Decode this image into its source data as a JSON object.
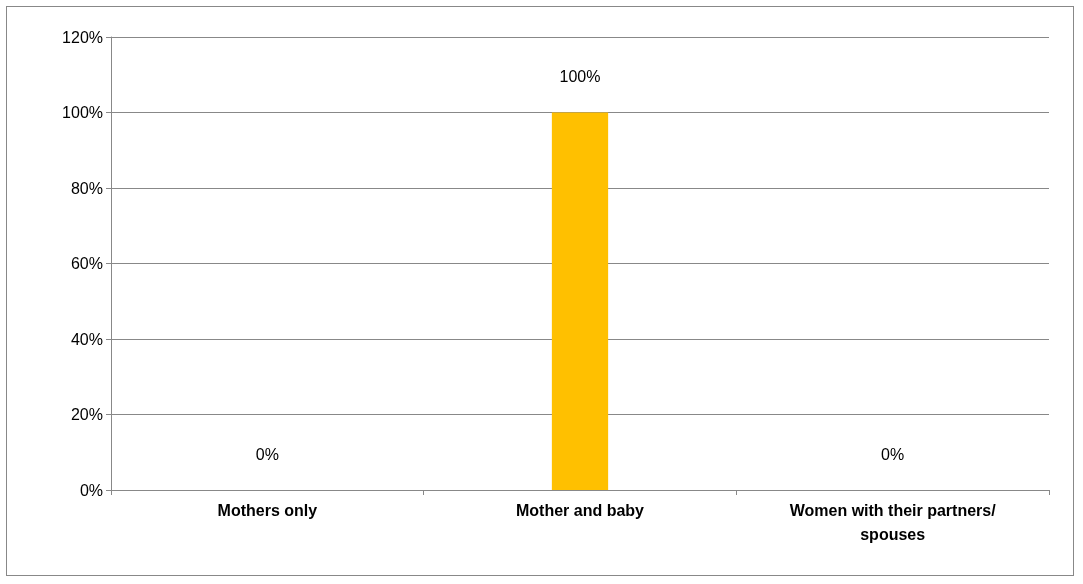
{
  "chart_data": {
    "type": "bar",
    "categories": [
      "Mothers only",
      "Mother and baby",
      "Women with their partners/spouses"
    ],
    "values": [
      0,
      100,
      0
    ],
    "color": "#ffc000",
    "value_labels": [
      "0%",
      "100%",
      "0%"
    ],
    "ylim": [
      0,
      120
    ],
    "yticks": [
      {
        "value": 0,
        "label": "0%"
      },
      {
        "value": 20,
        "label": "20%"
      },
      {
        "value": 40,
        "label": "40%"
      },
      {
        "value": 60,
        "label": "60%"
      },
      {
        "value": 80,
        "label": "80%"
      },
      {
        "value": 100,
        "label": "100%"
      },
      {
        "value": 120,
        "label": "120%"
      }
    ],
    "grid": "y"
  }
}
